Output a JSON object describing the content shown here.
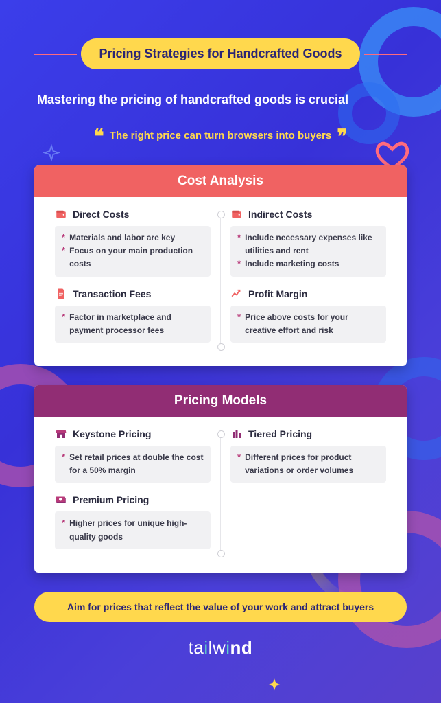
{
  "colors": {
    "bg_gradient_from": "#3b3eea",
    "bg_gradient_to": "#5840cc",
    "accent_yellow": "#ffd84d",
    "accent_pink": "#f06292",
    "accent_blue": "#3aa8ff",
    "header_red": "#f06262",
    "header_purple": "#912d74",
    "title_text": "#2c2674",
    "bullet_star": "#b83b7a",
    "body_text": "#3a3a4a",
    "bullet_bg": "#f1f1f3"
  },
  "typography": {
    "title_fontsize": 18,
    "subtitle_fontsize": 18,
    "quote_fontsize": 15,
    "card_header_fontsize": 19,
    "block_title_fontsize": 14,
    "bullet_fontsize": 12,
    "bottom_pill_fontsize": 14
  },
  "title": "Pricing Strategies for Handcrafted Goods",
  "subtitle": "Mastering the pricing of handcrafted goods is crucial",
  "quote": "The right price can turn browsers into buyers",
  "card1": {
    "header": "Cost Analysis",
    "left": [
      {
        "icon": "wallet",
        "title": "Direct Costs",
        "bullets": [
          "Materials and labor are key",
          "Focus on your main production costs"
        ]
      },
      {
        "icon": "file",
        "title": "Transaction Fees",
        "bullets": [
          "Factor in marketplace and payment processor fees"
        ]
      }
    ],
    "right": [
      {
        "icon": "wallet",
        "title": "Indirect Costs",
        "bullets": [
          "Include necessary expenses like utilities and rent",
          "Include marketing costs"
        ]
      },
      {
        "icon": "trend",
        "title": "Profit Margin",
        "bullets": [
          "Price above costs for your creative effort and risk"
        ]
      }
    ]
  },
  "card2": {
    "header": "Pricing Models",
    "left": [
      {
        "icon": "store",
        "title": "Keystone Pricing",
        "bullets": [
          "Set retail prices at double the cost for a 50% margin"
        ]
      },
      {
        "icon": "cash",
        "title": "Premium Pricing",
        "bullets": [
          "Higher prices for unique high-quality goods"
        ]
      }
    ],
    "right": [
      {
        "icon": "tiers",
        "title": "Tiered Pricing",
        "bullets": [
          "Different prices for product variations or order volumes"
        ]
      }
    ]
  },
  "bottom": "Aim for prices that reflect the value of your work and attract buyers",
  "brand": {
    "part1": "ta",
    "accent": "i",
    "part2": "lw",
    "accent2": "i",
    "part3": "nd"
  }
}
